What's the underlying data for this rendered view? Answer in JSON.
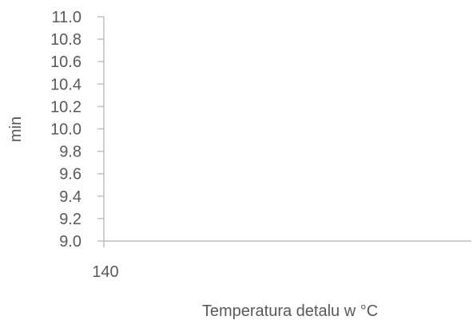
{
  "chart_data": {
    "type": "line",
    "title": "",
    "xlabel": "Temperatura detalu w °C",
    "ylabel": "min",
    "x": [
      140
    ],
    "x_tick_labels": [
      "140"
    ],
    "series": [],
    "y_ticks": [
      9.0,
      9.2,
      9.4,
      9.6,
      9.8,
      10.0,
      10.2,
      10.4,
      10.6,
      10.8,
      11.0
    ],
    "y_tick_labels": [
      "9.0",
      "9.2",
      "9.4",
      "9.6",
      "9.8",
      "10.0",
      "10.2",
      "10.4",
      "10.6",
      "10.8",
      "11.0"
    ],
    "ylim": [
      9.0,
      11.0
    ],
    "grid": false,
    "legend": "none",
    "colors": {
      "axis": "#bfbfbf",
      "text": "#595959"
    }
  }
}
